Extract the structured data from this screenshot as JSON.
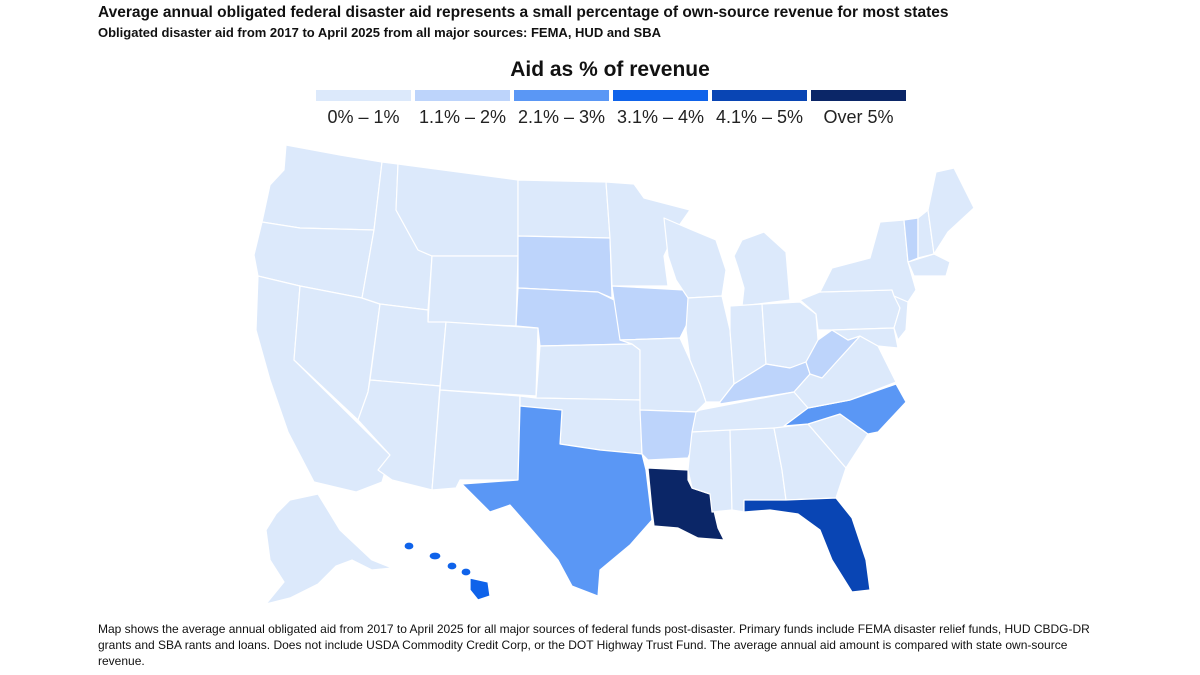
{
  "header": {
    "title": "Average annual obligated federal disaster aid represents a small percentage of own-source revenue for most states",
    "subtitle": "Obligated disaster aid from 2017 to April 2025 from all major sources: FEMA, HUD and SBA"
  },
  "legend": {
    "title": "Aid as % of revenue",
    "bins": [
      {
        "label": "0% – 1%",
        "color": "#dce9fb"
      },
      {
        "label": "1.1% – 2%",
        "color": "#bdd4fb"
      },
      {
        "label": "2.1% – 3%",
        "color": "#5a97f5"
      },
      {
        "label": "3.1% – 4%",
        "color": "#0f63ea"
      },
      {
        "label": "4.1% – 5%",
        "color": "#0945b4"
      },
      {
        "label": "Over 5%",
        "color": "#0b2667"
      }
    ]
  },
  "map_data": {
    "WA": 0,
    "OR": 0,
    "CA": 0,
    "NV": 0,
    "ID": 0,
    "MT": 0,
    "WY": 0,
    "UT": 0,
    "AZ": 0,
    "CO": 0,
    "NM": 0,
    "ND": 0,
    "SD": 1,
    "NE": 1,
    "KS": 0,
    "OK": 0,
    "TX": 2,
    "MN": 0,
    "IA": 1,
    "MO": 0,
    "AR": 1,
    "LA": 5,
    "WI": 0,
    "IL": 0,
    "MI": 0,
    "IN": 0,
    "OH": 0,
    "KY": 1,
    "TN": 0,
    "MS": 0,
    "AL": 0,
    "GA": 0,
    "FL": 4,
    "SC": 0,
    "NC": 2,
    "VA": 0,
    "WV": 1,
    "PA": 0,
    "NY": 0,
    "VT": 1,
    "ME": 0,
    "NH": 0,
    "MA": 0,
    "NJ": 0,
    "MD": 0,
    "AK": 0,
    "HI": 3
  },
  "footnote": "Map shows the average annual obligated aid from 2017 to April 2025 for all major sources of federal funds post-disaster. Primary funds include FEMA disaster relief funds, HUD CBDG-DR grants and SBA rants and loans. Does not include USDA Commodity Credit Corp, or the DOT Highway Trust Fund. The average annual aid amount is compared with state own-source revenue."
}
